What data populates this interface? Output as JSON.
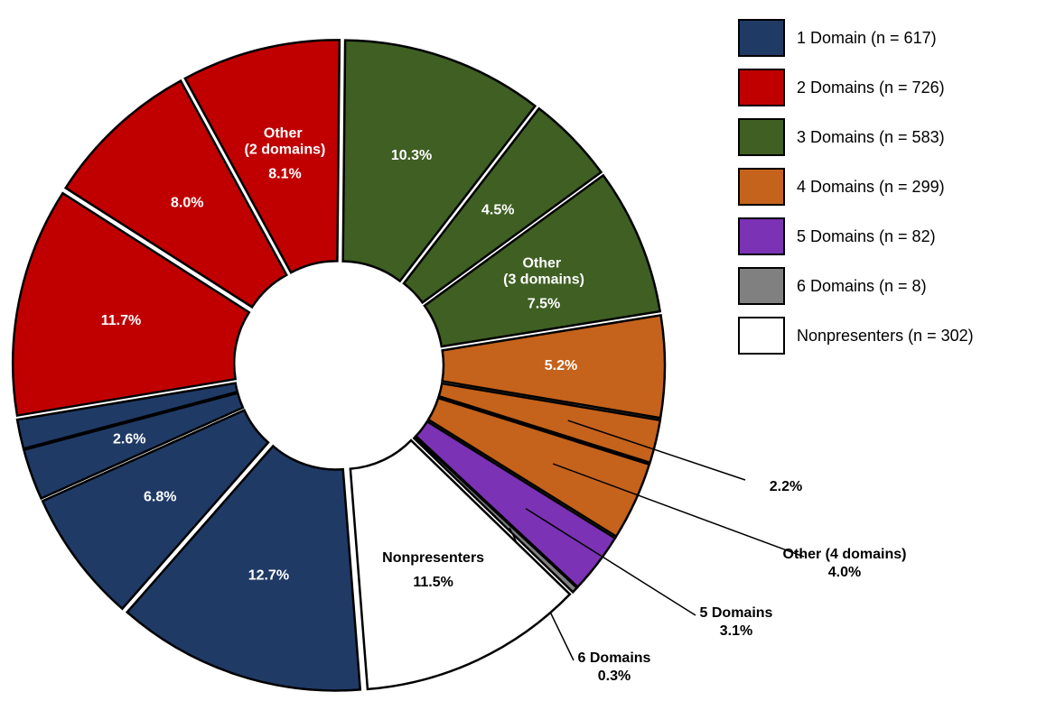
{
  "chart_data": {
    "type": "donut",
    "categories": [
      null,
      null,
      "Other (3 domains)",
      null,
      null,
      "Other (4 domains)",
      "5 Domains",
      "6 Domains",
      "Nonpresenters",
      null,
      null,
      null,
      null,
      null,
      null,
      "Other (2 domains)"
    ],
    "values": [
      10.3,
      4.5,
      7.5,
      5.2,
      2.2,
      4.0,
      3.1,
      0.3,
      11.5,
      12.7,
      6.8,
      2.6,
      1.5,
      11.7,
      8.0,
      8.1
    ],
    "value_labels": [
      "10.3%",
      "4.5%",
      "7.5%",
      "5.2%",
      "2.2%",
      "4.0%",
      "3.1%",
      "0.3%",
      "11.5%",
      "12.7%",
      "6.8%",
      "2.6%",
      null,
      "11.7%",
      "8.0%",
      "8.1%"
    ],
    "colors": [
      "#3f5f23",
      "#3f5f23",
      "#3f5f23",
      "#c5621b",
      "#c5621b",
      "#c5621b",
      "#7b32b4",
      "#808080",
      "#ffffff",
      "#203a66",
      "#203a66",
      "#203a66",
      "#203a66",
      "#c00000",
      "#c00000",
      "#c00000"
    ],
    "legend": [
      {
        "name": "1 Domain (n = 617)",
        "color": "#203a66"
      },
      {
        "name": "2 Domains (n = 726)",
        "color": "#c00000"
      },
      {
        "name": "3 Domains (n = 583)",
        "color": "#3f5f23"
      },
      {
        "name": "4 Domains (n = 299)",
        "color": "#c5621b"
      },
      {
        "name": "5 Domains (n = 82)",
        "color": "#7b32b4"
      },
      {
        "name": "6 Domains (n = 8)",
        "color": "#808080"
      },
      {
        "name": "Nonpresenters (n = 302)",
        "color": "#ffffff"
      }
    ]
  }
}
